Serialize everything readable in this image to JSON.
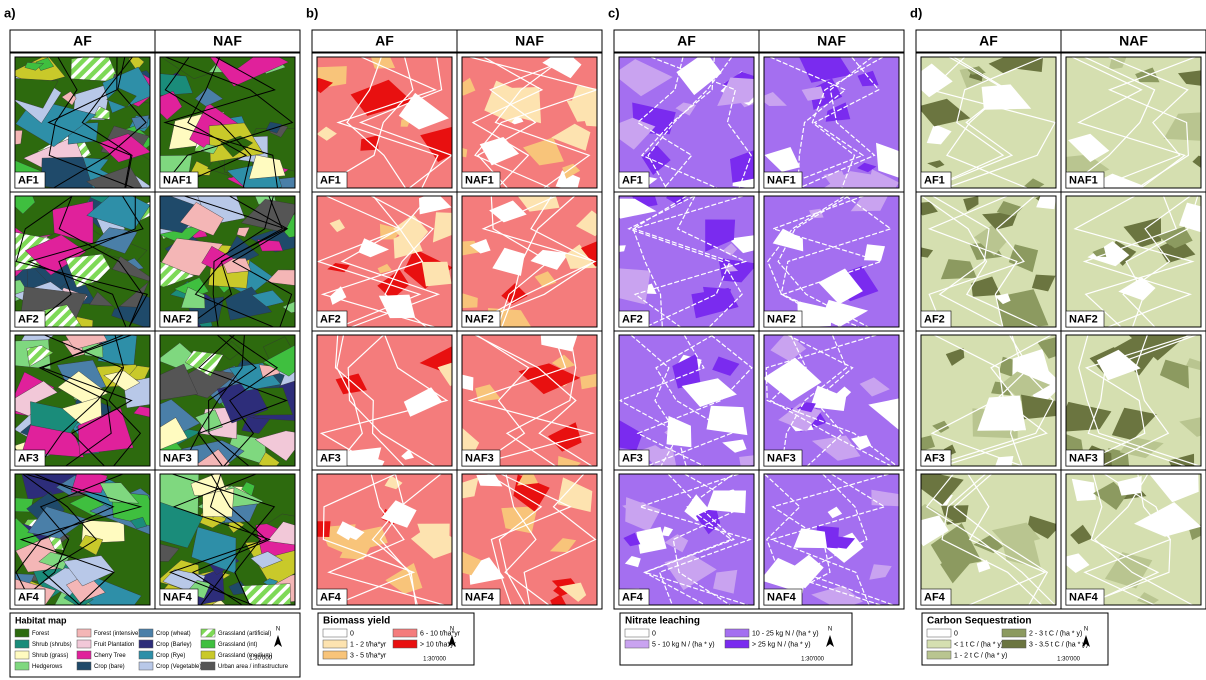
{
  "panels": [
    {
      "label": "a)",
      "columns": [
        "AF",
        "NAF"
      ],
      "tiles": [
        [
          "AF1",
          "NAF1"
        ],
        [
          "AF2",
          "NAF2"
        ],
        [
          "AF3",
          "NAF3"
        ],
        [
          "AF4",
          "NAF4"
        ]
      ],
      "legend": {
        "title": "Habitat map",
        "scale": "1:30'000",
        "north": "N",
        "items": [
          {
            "label": "Forest",
            "color": "#2d6a0e"
          },
          {
            "label": "Forest (intensive)",
            "color": "#f4b6b6"
          },
          {
            "label": "Crop (wheat)",
            "color": "#4a7fa8"
          },
          {
            "label": "Grassland (artificial)",
            "color": "#7ed957",
            "hatch": true
          },
          {
            "label": "Shrub (shrubs)",
            "color": "#1a8c7a"
          },
          {
            "label": "Fruit Plantation",
            "color": "#f2c8d8"
          },
          {
            "label": "Crop (Barley)",
            "color": "#2d2d7a"
          },
          {
            "label": "Grassland (int)",
            "color": "#3fbf3f"
          },
          {
            "label": "Shrub (grass)",
            "color": "#fffbc0"
          },
          {
            "label": "Cherry Tree",
            "color": "#e0219b"
          },
          {
            "label": "Crop (Rye)",
            "color": "#2e8fa8"
          },
          {
            "label": "Grassland (medium)",
            "color": "#c9c92a"
          },
          {
            "label": "Hedgerows",
            "color": "#7fd87f"
          },
          {
            "label": "Crop (bare)",
            "color": "#1f4a6a"
          },
          {
            "label": "Crop (Vegetable)",
            "color": "#b8c8e8"
          },
          {
            "label": "Urban area / infrastructure",
            "color": "#555555"
          }
        ]
      }
    },
    {
      "label": "b)",
      "columns": [
        "AF",
        "NAF"
      ],
      "tiles": [
        [
          "AF1",
          "NAF1"
        ],
        [
          "AF2",
          "NAF2"
        ],
        [
          "AF3",
          "NAF3"
        ],
        [
          "AF4",
          "NAF4"
        ]
      ],
      "legend": {
        "title": "Biomass yield",
        "scale": "1:30'000",
        "north": "N",
        "items": [
          {
            "label": "0",
            "color": "#ffffff"
          },
          {
            "label": "1 - 2  t/ha*yr",
            "color": "#fde3b0"
          },
          {
            "label": "3 - 5  t/ha*yr",
            "color": "#f8c47a"
          },
          {
            "label": "6 - 10  t/ha*yr",
            "color": "#f47c7c"
          },
          {
            "label": "> 10  t/ha*yr",
            "color": "#e81010"
          }
        ]
      }
    },
    {
      "label": "c)",
      "columns": [
        "AF",
        "NAF"
      ],
      "tiles": [
        [
          "AF1",
          "NAF1"
        ],
        [
          "AF2",
          "NAF2"
        ],
        [
          "AF3",
          "NAF3"
        ],
        [
          "AF4",
          "NAF4"
        ]
      ],
      "legend": {
        "title": "Nitrate leaching",
        "scale": "1:30'000",
        "north": "N",
        "items": [
          {
            "label": "0",
            "color": "#ffffff"
          },
          {
            "label": "5 - 10  kg N / (ha * y)",
            "color": "#c9a3f0"
          },
          {
            "label": "10 - 25  kg N / (ha * y)",
            "color": "#a46ff0"
          },
          {
            "label": "> 25  kg N / (ha * y)",
            "color": "#7a2bef"
          }
        ]
      }
    },
    {
      "label": "d)",
      "columns": [
        "AF",
        "NAF"
      ],
      "tiles": [
        [
          "AF1",
          "NAF1"
        ],
        [
          "AF2",
          "NAF2"
        ],
        [
          "AF3",
          "NAF3"
        ],
        [
          "AF4",
          "NAF4"
        ]
      ],
      "legend": {
        "title": "Carbon Sequestration",
        "scale": "1:30'000",
        "north": "N",
        "items": [
          {
            "label": "0",
            "color": "#ffffff"
          },
          {
            "label": "< 1 t C / (ha * y)",
            "color": "#d5dfb0"
          },
          {
            "label": "1 - 2 t C / (ha * y)",
            "color": "#b9c590"
          },
          {
            "label": "2 - 3  t C / (ha * y)",
            "color": "#8c9a60"
          },
          {
            "label": "3 - 3.5  t C / (ha * y)",
            "color": "#6b7540"
          }
        ]
      }
    }
  ]
}
